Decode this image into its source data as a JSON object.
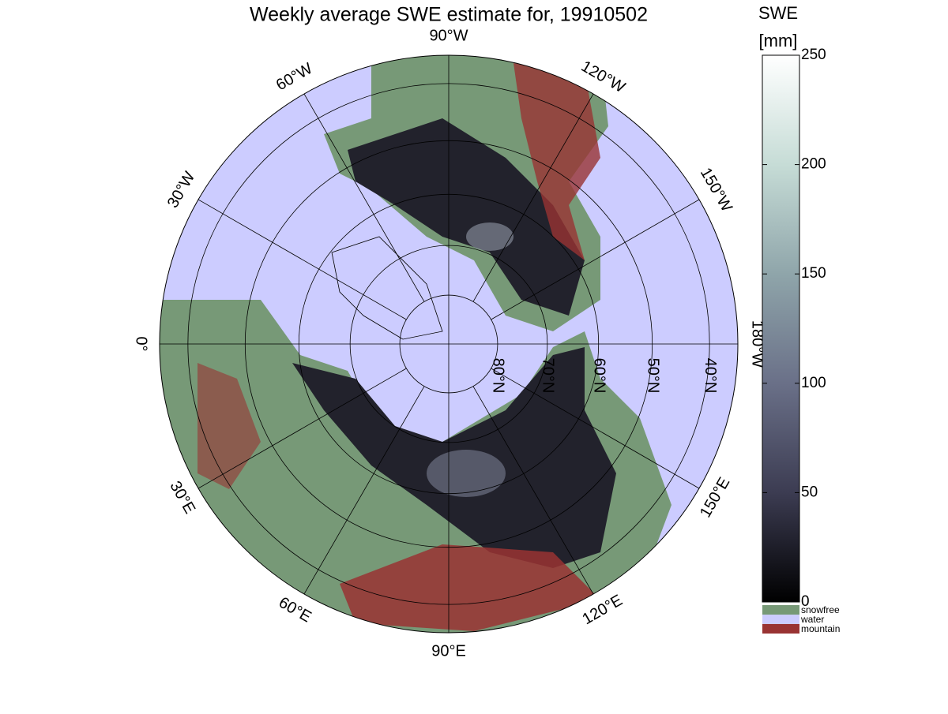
{
  "title": "Weekly average SWE estimate for, 19910502",
  "map": {
    "projection": "polar stereographic",
    "longitudes": [
      {
        "value": 0,
        "label": "0°"
      },
      {
        "value": -30,
        "label": "30°W"
      },
      {
        "value": -60,
        "label": "60°W"
      },
      {
        "value": -90,
        "label": "90°W"
      },
      {
        "value": -120,
        "label": "120°W"
      },
      {
        "value": -150,
        "label": "150°W"
      },
      {
        "value": 180,
        "label": "180°W"
      },
      {
        "value": 150,
        "label": "150°E"
      },
      {
        "value": 120,
        "label": "120°E"
      },
      {
        "value": 90,
        "label": "90°E"
      },
      {
        "value": 60,
        "label": "60°E"
      },
      {
        "value": 30,
        "label": "30°E"
      }
    ],
    "latitudes": [
      {
        "value": 80,
        "label": "80°N"
      },
      {
        "value": 70,
        "label": "70°N"
      },
      {
        "value": 60,
        "label": "60°N"
      },
      {
        "value": 50,
        "label": "50°N"
      },
      {
        "value": 40,
        "label": "40°N"
      }
    ]
  },
  "colorbar": {
    "label": "SWE",
    "unit": "[mm]",
    "ylim": [
      0,
      250
    ],
    "yticks": [
      0,
      50,
      100,
      150,
      200,
      250
    ],
    "colors": [
      "#000000",
      "#3c3c52",
      "#6a7088",
      "#8fa5aa",
      "#c6dcd6",
      "#ffffff"
    ]
  },
  "legend": [
    {
      "name": "snowfree",
      "color": "#779977"
    },
    {
      "name": "water",
      "color": "#ccccff"
    },
    {
      "name": "mountain",
      "color": "#993333"
    }
  ]
}
